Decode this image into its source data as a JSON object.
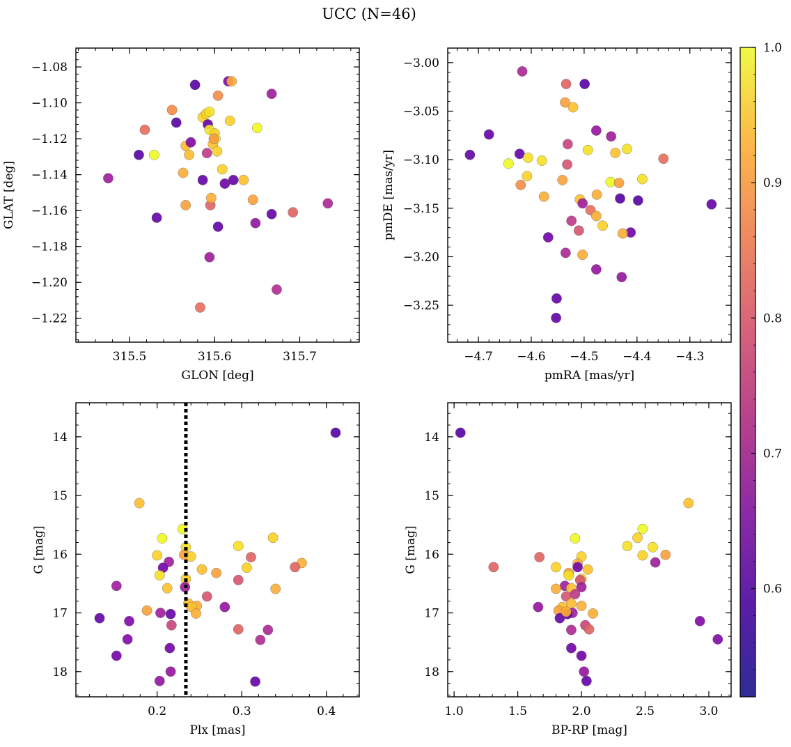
{
  "figure": {
    "title": "UCC (N=46)",
    "colorbar": {
      "min": 0.52,
      "max": 1.0,
      "ticks": [
        0.6,
        0.7,
        0.8,
        0.9,
        1.0
      ],
      "tick_labels": [
        "0.6",
        "0.7",
        "0.8",
        "0.9",
        "1.0"
      ],
      "colormap": "plasma"
    }
  },
  "chart_data": [
    {
      "type": "scatter",
      "id": "glon-glat",
      "xlabel": "GLON [deg]",
      "ylabel": "GLAT [deg]",
      "xlim": [
        315.437,
        315.77
      ],
      "ylim": [
        -1.2333,
        -1.0695
      ],
      "y_inverted": false,
      "xticks": [
        315.5,
        315.6,
        315.7
      ],
      "xtick_labels": [
        "315.5",
        "315.6",
        "315.7"
      ],
      "yticks": [
        -1.08,
        -1.1,
        -1.12,
        -1.14,
        -1.16,
        -1.18,
        -1.2,
        -1.22
      ],
      "ytick_labels": [
        "−1.08",
        "−1.10",
        "−1.12",
        "−1.14",
        "−1.16",
        "−1.18",
        "−1.20",
        "−1.22"
      ],
      "points": [
        {
          "x": 315.475,
          "y": -1.142,
          "c": 0.65
        },
        {
          "x": 315.511,
          "y": -1.129,
          "c": 0.53
        },
        {
          "x": 315.518,
          "y": -1.115,
          "c": 0.8
        },
        {
          "x": 315.529,
          "y": -1.129,
          "c": 1.0
        },
        {
          "x": 315.532,
          "y": -1.164,
          "c": 0.55
        },
        {
          "x": 315.55,
          "y": -1.104,
          "c": 0.85
        },
        {
          "x": 315.555,
          "y": -1.111,
          "c": 0.53
        },
        {
          "x": 315.563,
          "y": -1.139,
          "c": 0.9
        },
        {
          "x": 315.566,
          "y": -1.157,
          "c": 0.88
        },
        {
          "x": 315.566,
          "y": -1.124,
          "c": 0.92
        },
        {
          "x": 315.57,
          "y": -1.129,
          "c": 0.92
        },
        {
          "x": 315.572,
          "y": -1.122,
          "c": 0.6
        },
        {
          "x": 315.577,
          "y": -1.09,
          "c": 0.53
        },
        {
          "x": 315.583,
          "y": -1.214,
          "c": 0.8
        },
        {
          "x": 315.586,
          "y": -1.143,
          "c": 0.55
        },
        {
          "x": 315.586,
          "y": -1.108,
          "c": 0.95
        },
        {
          "x": 315.59,
          "y": -1.106,
          "c": 0.95
        },
        {
          "x": 315.591,
          "y": -1.128,
          "c": 0.7
        },
        {
          "x": 315.592,
          "y": -1.112,
          "c": 0.55
        },
        {
          "x": 315.594,
          "y": -1.105,
          "c": 0.97
        },
        {
          "x": 315.594,
          "y": -1.115,
          "c": 0.98
        },
        {
          "x": 315.594,
          "y": -1.186,
          "c": 0.65
        },
        {
          "x": 315.595,
          "y": -1.157,
          "c": 0.78
        },
        {
          "x": 315.596,
          "y": -1.153,
          "c": 0.9
        },
        {
          "x": 315.598,
          "y": -1.123,
          "c": 0.93
        },
        {
          "x": 315.6,
          "y": -1.117,
          "c": 0.95
        },
        {
          "x": 315.601,
          "y": -1.12,
          "c": 0.98
        },
        {
          "x": 315.603,
          "y": -1.127,
          "c": 0.95
        },
        {
          "x": 315.604,
          "y": -1.169,
          "c": 0.55
        },
        {
          "x": 315.604,
          "y": -1.096,
          "c": 0.85
        },
        {
          "x": 315.609,
          "y": -1.137,
          "c": 0.95
        },
        {
          "x": 315.612,
          "y": -1.145,
          "c": 0.57
        },
        {
          "x": 315.616,
          "y": -1.088,
          "c": 0.6
        },
        {
          "x": 315.618,
          "y": -1.11,
          "c": 0.95
        },
        {
          "x": 315.62,
          "y": -1.088,
          "c": 0.9
        },
        {
          "x": 315.622,
          "y": -1.143,
          "c": 0.55
        },
        {
          "x": 315.634,
          "y": -1.143,
          "c": 0.93
        },
        {
          "x": 315.645,
          "y": -1.154,
          "c": 0.88
        },
        {
          "x": 315.648,
          "y": -1.167,
          "c": 0.63
        },
        {
          "x": 315.65,
          "y": -1.114,
          "c": 1.0
        },
        {
          "x": 315.667,
          "y": -1.095,
          "c": 0.65
        },
        {
          "x": 315.667,
          "y": -1.162,
          "c": 0.55
        },
        {
          "x": 315.673,
          "y": -1.204,
          "c": 0.68
        },
        {
          "x": 315.692,
          "y": -1.161,
          "c": 0.78
        },
        {
          "x": 315.733,
          "y": -1.156,
          "c": 0.67
        },
        {
          "x": 315.599,
          "y": -1.12,
          "c": 0.87
        }
      ]
    },
    {
      "type": "scatter",
      "id": "pmra-pmde",
      "xlabel": "pmRA [mas/yr]",
      "ylabel": "pmDE [mas/yr]",
      "xlim": [
        -4.758,
        -4.222
      ],
      "ylim": [
        -3.288,
        -2.985
      ],
      "y_inverted": false,
      "xticks": [
        -4.7,
        -4.6,
        -4.5,
        -4.4,
        -4.3
      ],
      "xtick_labels": [
        "−4.7",
        "−4.6",
        "−4.5",
        "−4.4",
        "−4.3"
      ],
      "yticks": [
        -3.0,
        -3.05,
        -3.1,
        -3.15,
        -3.2,
        -3.25
      ],
      "ytick_labels": [
        "−3.00",
        "−3.05",
        "−3.10",
        "−3.15",
        "−3.20",
        "−3.25"
      ],
      "points": [
        {
          "x": -4.617,
          "y": -3.009,
          "c": 0.67
        },
        {
          "x": -4.534,
          "y": -3.022,
          "c": 0.78
        },
        {
          "x": -4.499,
          "y": -3.022,
          "c": 0.53
        },
        {
          "x": -4.536,
          "y": -3.041,
          "c": 0.88
        },
        {
          "x": -4.521,
          "y": -3.046,
          "c": 0.93
        },
        {
          "x": -4.477,
          "y": -3.07,
          "c": 0.63
        },
        {
          "x": -4.68,
          "y": -3.074,
          "c": 0.55
        },
        {
          "x": -4.449,
          "y": -3.076,
          "c": 0.65
        },
        {
          "x": -4.531,
          "y": -3.084,
          "c": 0.72
        },
        {
          "x": -4.419,
          "y": -3.089,
          "c": 0.97
        },
        {
          "x": -4.493,
          "y": -3.09,
          "c": 0.97
        },
        {
          "x": -4.441,
          "y": -3.093,
          "c": 0.93
        },
        {
          "x": -4.622,
          "y": -3.094,
          "c": 0.55
        },
        {
          "x": -4.716,
          "y": -3.095,
          "c": 0.55
        },
        {
          "x": -4.606,
          "y": -3.098,
          "c": 0.97
        },
        {
          "x": -4.35,
          "y": -3.099,
          "c": 0.8
        },
        {
          "x": -4.58,
          "y": -3.101,
          "c": 0.97
        },
        {
          "x": -4.643,
          "y": -3.104,
          "c": 1.0
        },
        {
          "x": -4.532,
          "y": -3.105,
          "c": 0.75
        },
        {
          "x": -4.608,
          "y": -3.117,
          "c": 0.95
        },
        {
          "x": -4.39,
          "y": -3.12,
          "c": 0.97
        },
        {
          "x": -4.541,
          "y": -3.121,
          "c": 0.88
        },
        {
          "x": -4.45,
          "y": -3.123,
          "c": 1.0
        },
        {
          "x": -4.434,
          "y": -3.124,
          "c": 0.88
        },
        {
          "x": -4.62,
          "y": -3.126,
          "c": 0.85
        },
        {
          "x": -4.476,
          "y": -3.136,
          "c": 0.9
        },
        {
          "x": -4.576,
          "y": -3.138,
          "c": 0.9
        },
        {
          "x": -4.432,
          "y": -3.14,
          "c": 0.53
        },
        {
          "x": -4.508,
          "y": -3.141,
          "c": 0.93
        },
        {
          "x": -4.398,
          "y": -3.142,
          "c": 0.53
        },
        {
          "x": -4.503,
          "y": -3.145,
          "c": 0.65
        },
        {
          "x": -4.259,
          "y": -3.146,
          "c": 0.55
        },
        {
          "x": -4.488,
          "y": -3.152,
          "c": 0.8
        },
        {
          "x": -4.477,
          "y": -3.158,
          "c": 0.9
        },
        {
          "x": -4.524,
          "y": -3.163,
          "c": 0.7
        },
        {
          "x": -4.465,
          "y": -3.168,
          "c": 0.95
        },
        {
          "x": -4.51,
          "y": -3.173,
          "c": 0.75
        },
        {
          "x": -4.412,
          "y": -3.175,
          "c": 0.57
        },
        {
          "x": -4.427,
          "y": -3.176,
          "c": 0.9
        },
        {
          "x": -4.568,
          "y": -3.18,
          "c": 0.57
        },
        {
          "x": -4.535,
          "y": -3.196,
          "c": 0.67
        },
        {
          "x": -4.503,
          "y": -3.198,
          "c": 0.9
        },
        {
          "x": -4.477,
          "y": -3.213,
          "c": 0.63
        },
        {
          "x": -4.429,
          "y": -3.221,
          "c": 0.63
        },
        {
          "x": -4.552,
          "y": -3.243,
          "c": 0.55
        },
        {
          "x": -4.553,
          "y": -3.263,
          "c": 0.55
        }
      ]
    },
    {
      "type": "scatter",
      "id": "plx-g",
      "xlabel": "Plx [mas]",
      "ylabel": "G [mag]",
      "xlim": [
        0.104,
        0.439
      ],
      "ylim": [
        18.43,
        13.42
      ],
      "y_inverted": true,
      "vline": 0.234,
      "xticks": [
        0.2,
        0.3,
        0.4
      ],
      "xtick_labels": [
        "0.2",
        "0.3",
        "0.4"
      ],
      "yticks": [
        14,
        15,
        16,
        17,
        18
      ],
      "ytick_labels": [
        "14",
        "15",
        "16",
        "17",
        "18"
      ],
      "points": [
        {
          "x": 0.411,
          "y": 13.93,
          "c": 0.53
        },
        {
          "x": 0.179,
          "y": 15.13,
          "c": 0.93
        },
        {
          "x": 0.23,
          "y": 15.57,
          "c": 1.0
        },
        {
          "x": 0.206,
          "y": 15.73,
          "c": 1.0
        },
        {
          "x": 0.337,
          "y": 15.72,
          "c": 0.95
        },
        {
          "x": 0.296,
          "y": 15.86,
          "c": 0.97
        },
        {
          "x": 0.234,
          "y": 15.88,
          "c": 0.97
        },
        {
          "x": 0.2,
          "y": 16.02,
          "c": 0.95
        },
        {
          "x": 0.232,
          "y": 16.01,
          "c": 0.88
        },
        {
          "x": 0.24,
          "y": 16.04,
          "c": 0.95
        },
        {
          "x": 0.311,
          "y": 16.05,
          "c": 0.78
        },
        {
          "x": 0.214,
          "y": 16.13,
          "c": 0.65
        },
        {
          "x": 0.371,
          "y": 16.15,
          "c": 0.9
        },
        {
          "x": 0.363,
          "y": 16.22,
          "c": 0.78
        },
        {
          "x": 0.207,
          "y": 16.23,
          "c": 0.57
        },
        {
          "x": 0.306,
          "y": 16.23,
          "c": 0.95
        },
        {
          "x": 0.253,
          "y": 16.26,
          "c": 0.93
        },
        {
          "x": 0.27,
          "y": 16.32,
          "c": 0.88
        },
        {
          "x": 0.203,
          "y": 16.36,
          "c": 0.97
        },
        {
          "x": 0.234,
          "y": 16.42,
          "c": 0.95
        },
        {
          "x": 0.296,
          "y": 16.44,
          "c": 0.75
        },
        {
          "x": 0.233,
          "y": 16.56,
          "c": 0.65
        },
        {
          "x": 0.212,
          "y": 16.58,
          "c": 0.93
        },
        {
          "x": 0.152,
          "y": 16.54,
          "c": 0.65
        },
        {
          "x": 0.34,
          "y": 16.59,
          "c": 0.9
        },
        {
          "x": 0.259,
          "y": 16.72,
          "c": 0.75
        },
        {
          "x": 0.237,
          "y": 16.84,
          "c": 0.92
        },
        {
          "x": 0.247,
          "y": 16.88,
          "c": 0.9
        },
        {
          "x": 0.241,
          "y": 16.9,
          "c": 0.93
        },
        {
          "x": 0.28,
          "y": 16.9,
          "c": 0.63
        },
        {
          "x": 0.188,
          "y": 16.96,
          "c": 0.88
        },
        {
          "x": 0.246,
          "y": 17.01,
          "c": 0.9
        },
        {
          "x": 0.204,
          "y": 17.0,
          "c": 0.65
        },
        {
          "x": 0.216,
          "y": 17.02,
          "c": 0.55
        },
        {
          "x": 0.132,
          "y": 17.09,
          "c": 0.55
        },
        {
          "x": 0.167,
          "y": 17.14,
          "c": 0.6
        },
        {
          "x": 0.217,
          "y": 17.21,
          "c": 0.72
        },
        {
          "x": 0.296,
          "y": 17.28,
          "c": 0.78
        },
        {
          "x": 0.331,
          "y": 17.29,
          "c": 0.67
        },
        {
          "x": 0.165,
          "y": 17.45,
          "c": 0.6
        },
        {
          "x": 0.322,
          "y": 17.46,
          "c": 0.68
        },
        {
          "x": 0.215,
          "y": 17.6,
          "c": 0.57
        },
        {
          "x": 0.152,
          "y": 17.73,
          "c": 0.57
        },
        {
          "x": 0.216,
          "y": 18.0,
          "c": 0.63
        },
        {
          "x": 0.203,
          "y": 18.16,
          "c": 0.63
        },
        {
          "x": 0.316,
          "y": 18.17,
          "c": 0.55
        }
      ]
    },
    {
      "type": "scatter",
      "id": "bprp-g",
      "xlabel": "BP-RP [mag]",
      "ylabel": "G [mag]",
      "xlim": [
        0.95,
        3.175
      ],
      "ylim": [
        18.43,
        13.42
      ],
      "y_inverted": true,
      "xticks": [
        1.0,
        1.5,
        2.0,
        2.5,
        3.0
      ],
      "xtick_labels": [
        "1.0",
        "1.5",
        "2.0",
        "2.5",
        "3.0"
      ],
      "yticks": [
        14,
        15,
        16,
        17,
        18
      ],
      "ytick_labels": [
        "14",
        "15",
        "16",
        "17",
        "18"
      ],
      "points": [
        {
          "x": 1.05,
          "y": 13.93,
          "c": 0.53
        },
        {
          "x": 2.84,
          "y": 15.13,
          "c": 0.93
        },
        {
          "x": 2.48,
          "y": 15.57,
          "c": 1.0
        },
        {
          "x": 1.95,
          "y": 15.73,
          "c": 1.0
        },
        {
          "x": 2.44,
          "y": 15.72,
          "c": 0.95
        },
        {
          "x": 2.36,
          "y": 15.86,
          "c": 0.97
        },
        {
          "x": 2.56,
          "y": 15.88,
          "c": 0.97
        },
        {
          "x": 2.48,
          "y": 16.02,
          "c": 0.95
        },
        {
          "x": 2.66,
          "y": 16.01,
          "c": 0.88
        },
        {
          "x": 2.0,
          "y": 16.04,
          "c": 0.95
        },
        {
          "x": 1.67,
          "y": 16.05,
          "c": 0.78
        },
        {
          "x": 2.58,
          "y": 16.14,
          "c": 0.65
        },
        {
          "x": 1.97,
          "y": 16.16,
          "c": 0.9
        },
        {
          "x": 1.31,
          "y": 16.22,
          "c": 0.78
        },
        {
          "x": 1.97,
          "y": 16.22,
          "c": 0.57
        },
        {
          "x": 1.8,
          "y": 16.22,
          "c": 0.95
        },
        {
          "x": 2.05,
          "y": 16.26,
          "c": 0.93
        },
        {
          "x": 1.9,
          "y": 16.32,
          "c": 0.88
        },
        {
          "x": 1.9,
          "y": 16.36,
          "c": 0.97
        },
        {
          "x": 2.0,
          "y": 16.42,
          "c": 0.95
        },
        {
          "x": 1.99,
          "y": 16.44,
          "c": 0.75
        },
        {
          "x": 1.87,
          "y": 16.54,
          "c": 0.65
        },
        {
          "x": 2.0,
          "y": 16.56,
          "c": 0.65
        },
        {
          "x": 1.92,
          "y": 16.58,
          "c": 0.93
        },
        {
          "x": 1.8,
          "y": 16.59,
          "c": 0.9
        },
        {
          "x": 1.88,
          "y": 16.72,
          "c": 0.75
        },
        {
          "x": 1.92,
          "y": 16.84,
          "c": 0.92
        },
        {
          "x": 2.0,
          "y": 16.88,
          "c": 0.9
        },
        {
          "x": 1.85,
          "y": 16.9,
          "c": 0.93
        },
        {
          "x": 1.66,
          "y": 16.9,
          "c": 0.63
        },
        {
          "x": 1.82,
          "y": 16.96,
          "c": 0.88
        },
        {
          "x": 2.09,
          "y": 17.01,
          "c": 0.9
        },
        {
          "x": 1.93,
          "y": 17.0,
          "c": 0.65
        },
        {
          "x": 1.89,
          "y": 17.02,
          "c": 0.55
        },
        {
          "x": 1.83,
          "y": 17.09,
          "c": 0.55
        },
        {
          "x": 2.93,
          "y": 17.14,
          "c": 0.6
        },
        {
          "x": 2.03,
          "y": 17.21,
          "c": 0.72
        },
        {
          "x": 2.06,
          "y": 17.28,
          "c": 0.78
        },
        {
          "x": 1.92,
          "y": 17.29,
          "c": 0.67
        },
        {
          "x": 3.07,
          "y": 17.45,
          "c": 0.6
        },
        {
          "x": 1.92,
          "y": 17.6,
          "c": 0.57
        },
        {
          "x": 2.0,
          "y": 17.73,
          "c": 0.57
        },
        {
          "x": 2.02,
          "y": 18.0,
          "c": 0.63
        },
        {
          "x": 2.04,
          "y": 18.16,
          "c": 0.55
        },
        {
          "x": 1.88,
          "y": 16.98,
          "c": 0.9
        },
        {
          "x": 1.95,
          "y": 16.68,
          "c": 0.7
        }
      ]
    }
  ]
}
